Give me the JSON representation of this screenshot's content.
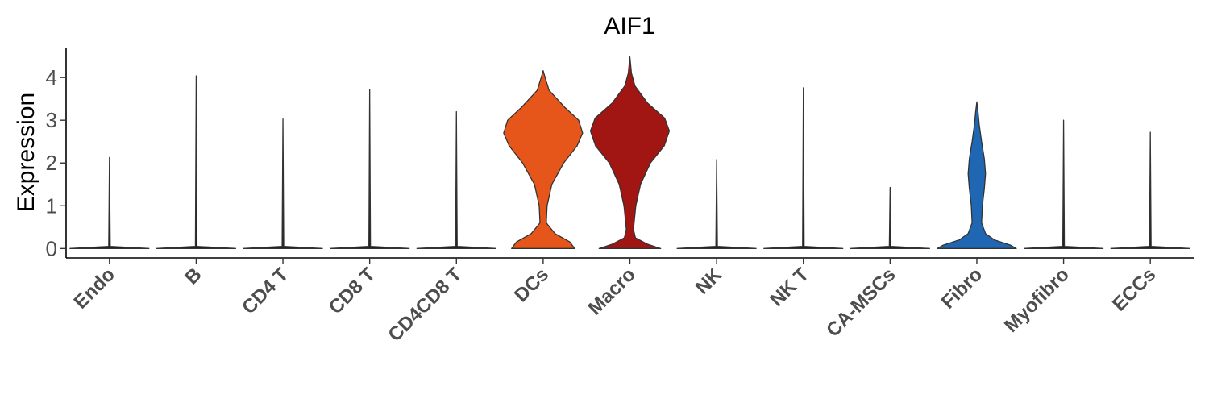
{
  "chart_data": {
    "type": "violin",
    "title": "AIF1",
    "xlabel": "",
    "ylabel": "Expression",
    "ylim": [
      -0.22,
      4.7
    ],
    "yticks": [
      0,
      1,
      2,
      3,
      4
    ],
    "grid": false,
    "legend": "none",
    "categories": [
      "Endo",
      "B",
      "CD4 T",
      "CD8 T",
      "CD4CD8 T",
      "DCs",
      "Macro",
      "NK",
      "NK T",
      "CA-MSCs",
      "Fibro",
      "Myofibro",
      "ECCs"
    ],
    "series": [
      {
        "category": "Endo",
        "color": "#1a1a1a",
        "max": 2.13,
        "profile": [
          [
            0,
            1.0
          ],
          [
            0.05,
            0.02
          ],
          [
            2.13,
            0.0
          ]
        ]
      },
      {
        "category": "B",
        "color": "#1a1a1a",
        "max": 4.04,
        "profile": [
          [
            0,
            1.0
          ],
          [
            0.05,
            0.02
          ],
          [
            4.04,
            0.0
          ]
        ]
      },
      {
        "category": "CD4 T",
        "color": "#1a1a1a",
        "max": 3.03,
        "profile": [
          [
            0,
            1.0
          ],
          [
            0.05,
            0.02
          ],
          [
            3.03,
            0.0
          ]
        ]
      },
      {
        "category": "CD8 T",
        "color": "#1a1a1a",
        "max": 3.72,
        "profile": [
          [
            0,
            1.0
          ],
          [
            0.05,
            0.02
          ],
          [
            3.72,
            0.0
          ]
        ]
      },
      {
        "category": "CD4CD8 T",
        "color": "#1a1a1a",
        "max": 3.2,
        "profile": [
          [
            0,
            1.0
          ],
          [
            0.05,
            0.02
          ],
          [
            3.2,
            0.0
          ]
        ]
      },
      {
        "category": "DCs",
        "color": "#e6561a",
        "max": 4.16,
        "profile": [
          [
            0,
            0.8
          ],
          [
            0.15,
            0.68
          ],
          [
            0.35,
            0.3
          ],
          [
            0.6,
            0.08
          ],
          [
            1.0,
            0.1
          ],
          [
            1.5,
            0.22
          ],
          [
            2.0,
            0.52
          ],
          [
            2.4,
            0.86
          ],
          [
            2.7,
            1.0
          ],
          [
            3.0,
            0.9
          ],
          [
            3.3,
            0.55
          ],
          [
            3.7,
            0.15
          ],
          [
            4.0,
            0.05
          ],
          [
            4.16,
            0.0
          ]
        ]
      },
      {
        "category": "Macro",
        "color": "#a11613",
        "max": 4.48,
        "profile": [
          [
            0,
            0.78
          ],
          [
            0.1,
            0.45
          ],
          [
            0.25,
            0.14
          ],
          [
            0.45,
            0.09
          ],
          [
            1.0,
            0.15
          ],
          [
            1.5,
            0.27
          ],
          [
            2.0,
            0.52
          ],
          [
            2.4,
            0.87
          ],
          [
            2.75,
            1.0
          ],
          [
            3.05,
            0.88
          ],
          [
            3.4,
            0.45
          ],
          [
            3.8,
            0.13
          ],
          [
            4.1,
            0.04
          ],
          [
            4.48,
            0.0
          ]
        ]
      },
      {
        "category": "NK",
        "color": "#1a1a1a",
        "max": 2.08,
        "profile": [
          [
            0,
            1.0
          ],
          [
            0.05,
            0.02
          ],
          [
            2.08,
            0.0
          ]
        ]
      },
      {
        "category": "NK T",
        "color": "#1a1a1a",
        "max": 3.76,
        "profile": [
          [
            0,
            1.0
          ],
          [
            0.05,
            0.02
          ],
          [
            3.76,
            0.0
          ]
        ]
      },
      {
        "category": "CA-MSCs",
        "color": "#1a1a1a",
        "max": 1.43,
        "profile": [
          [
            0,
            1.0
          ],
          [
            0.05,
            0.02
          ],
          [
            1.43,
            0.0
          ]
        ]
      },
      {
        "category": "Fibro",
        "color": "#1f66b3",
        "max": 3.43,
        "profile": [
          [
            0,
            1.0
          ],
          [
            0.08,
            0.85
          ],
          [
            0.2,
            0.45
          ],
          [
            0.35,
            0.22
          ],
          [
            0.6,
            0.12
          ],
          [
            1.0,
            0.14
          ],
          [
            1.4,
            0.19
          ],
          [
            1.75,
            0.22
          ],
          [
            2.1,
            0.19
          ],
          [
            2.5,
            0.12
          ],
          [
            2.9,
            0.06
          ],
          [
            3.2,
            0.03
          ],
          [
            3.43,
            0.0
          ]
        ]
      },
      {
        "category": "Myofibro",
        "color": "#1a1a1a",
        "max": 3.0,
        "profile": [
          [
            0,
            1.0
          ],
          [
            0.05,
            0.02
          ],
          [
            3.0,
            0.0
          ]
        ]
      },
      {
        "category": "ECCs",
        "color": "#1a1a1a",
        "max": 2.72,
        "profile": [
          [
            0,
            1.0
          ],
          [
            0.05,
            0.02
          ],
          [
            2.72,
            0.0
          ]
        ]
      }
    ]
  }
}
